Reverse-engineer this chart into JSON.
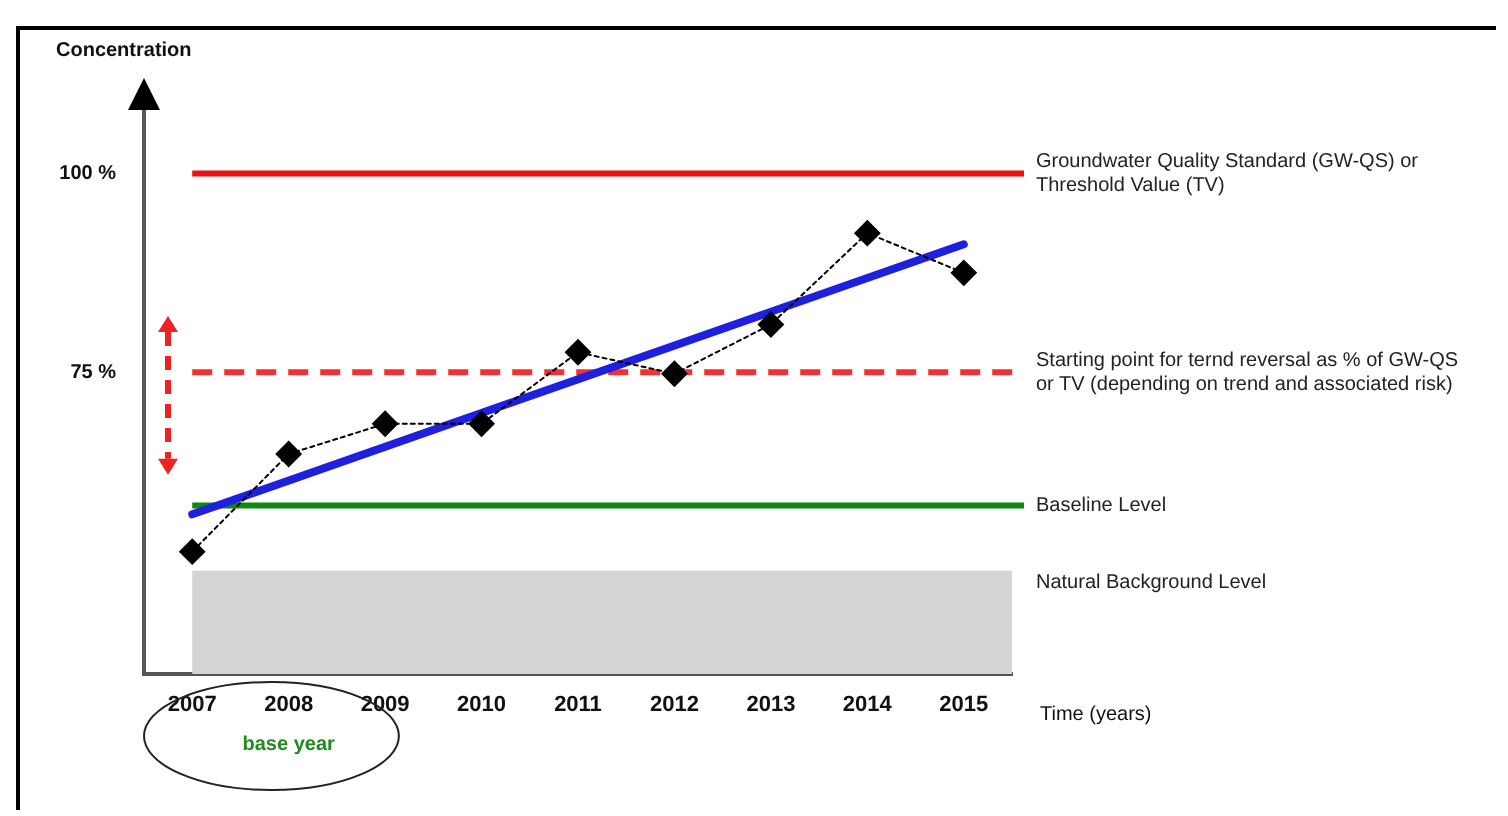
{
  "chart_data": {
    "type": "line",
    "ylabel": "Concentration",
    "xlabel": "Time (years)",
    "categories": [
      "2007",
      "2008",
      "2009",
      "2010",
      "2011",
      "2012",
      "2013",
      "2014",
      "2015"
    ],
    "series": [
      {
        "type": "line",
        "color": "#000000",
        "marker": "diamond",
        "line_style": "dotted",
        "values": [
          52.4,
          64.7,
          68.5,
          68.5,
          77.5,
          74.8,
          81.0,
          92.5,
          87.5
        ]
      },
      {
        "type": "line",
        "color": "#1f1fe0",
        "marker": "none",
        "line_style": "solid",
        "values": [
          57.1,
          null,
          null,
          null,
          null,
          null,
          null,
          null,
          91.1
        ]
      }
    ],
    "ylim": [
      37,
      108
    ],
    "yticks": [
      {
        "value": 100,
        "label": "100 %"
      },
      {
        "value": 75,
        "label": "75 %"
      }
    ],
    "ref_lines": [
      {
        "axis": "y",
        "value": 100,
        "label": "Groundwater Quality Standard (GW-QS) or Threshold Value (TV)",
        "color": "#ee1111",
        "line_style": "solid"
      },
      {
        "axis": "y",
        "value": 75,
        "label": "Starting point for ternd reversal as % of GW-QS or TV (depending on trend and associated risk)",
        "color": "#ee3333",
        "line_style": "dashed"
      },
      {
        "axis": "y",
        "value": 58.2,
        "label": "Baseline Level",
        "color": "#118811",
        "line_style": "solid"
      }
    ],
    "bands": [
      {
        "axis": "y",
        "from": 37,
        "to": 50,
        "label": "Natural Background Level",
        "color": "#d4d4d4"
      }
    ],
    "annotations": [
      "base year"
    ],
    "grid": false,
    "legend": false
  }
}
